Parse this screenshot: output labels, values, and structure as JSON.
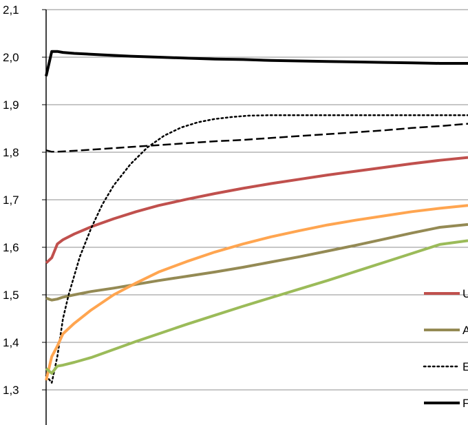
{
  "chart_data": {
    "type": "line",
    "ylim": [
      1.3,
      2.1
    ],
    "yticks": [
      "1,3",
      "1,4",
      "1,5",
      "1,6",
      "1,7",
      "1,8",
      "1,9",
      "2,0",
      "2,1"
    ],
    "ytick_values": [
      1.3,
      1.4,
      1.5,
      1.6,
      1.7,
      1.8,
      1.9,
      2.0,
      2.1
    ],
    "grid": true,
    "legend_position": "right (partially cut off)",
    "series": [
      {
        "name": "U",
        "color": "#c0504d",
        "dash": "solid",
        "x": [
          0,
          1,
          2,
          3,
          5,
          8,
          12,
          16,
          20,
          25,
          30,
          35,
          40,
          45,
          50,
          55,
          60,
          65,
          70,
          75
        ],
        "values": [
          1.567,
          1.578,
          1.607,
          1.616,
          1.628,
          1.643,
          1.66,
          1.675,
          1.688,
          1.701,
          1.713,
          1.724,
          1.734,
          1.743,
          1.752,
          1.76,
          1.768,
          1.776,
          1.783,
          1.789
        ]
      },
      {
        "name": "A",
        "color": "#948a54",
        "dash": "solid",
        "x": [
          0,
          1,
          2,
          3,
          5,
          8,
          12,
          16,
          20,
          25,
          30,
          35,
          40,
          45,
          50,
          55,
          60,
          65,
          70,
          75
        ],
        "values": [
          1.493,
          1.489,
          1.491,
          1.495,
          1.5,
          1.507,
          1.514,
          1.522,
          1.53,
          1.539,
          1.548,
          1.558,
          1.569,
          1.58,
          1.592,
          1.604,
          1.617,
          1.63,
          1.642,
          1.648
        ]
      },
      {
        "name": "E",
        "color": "#000000",
        "dash": "dotted",
        "x": [
          0,
          1,
          2,
          3,
          4,
          6,
          8,
          10,
          12,
          15,
          18,
          21,
          24,
          27,
          30,
          33,
          36,
          40,
          45,
          50,
          60,
          70,
          75
        ],
        "values": [
          1.33,
          1.315,
          1.37,
          1.45,
          1.5,
          1.58,
          1.64,
          1.69,
          1.73,
          1.775,
          1.81,
          1.835,
          1.852,
          1.863,
          1.87,
          1.874,
          1.877,
          1.878,
          1.878,
          1.878,
          1.878,
          1.878,
          1.878
        ]
      },
      {
        "name": "F",
        "color": "#000000",
        "dash": "solid",
        "x": [
          0,
          1,
          2,
          3,
          5,
          10,
          15,
          20,
          25,
          30,
          35,
          40,
          45,
          50,
          55,
          60,
          65,
          70,
          75
        ],
        "values": [
          1.96,
          2.012,
          2.012,
          2.01,
          2.008,
          2.005,
          2.002,
          2.0,
          1.998,
          1.996,
          1.995,
          1.993,
          1.992,
          1.991,
          1.99,
          1.989,
          1.988,
          1.987,
          1.987
        ]
      },
      {
        "name": "",
        "color": "#000000",
        "dash": "dashed",
        "x": [
          0,
          1,
          2,
          5,
          10,
          15,
          20,
          25,
          30,
          35,
          40,
          45,
          50,
          55,
          60,
          65,
          70,
          75
        ],
        "values": [
          1.804,
          1.801,
          1.801,
          1.803,
          1.807,
          1.811,
          1.815,
          1.819,
          1.823,
          1.826,
          1.83,
          1.834,
          1.838,
          1.842,
          1.846,
          1.851,
          1.855,
          1.86
        ]
      },
      {
        "name": "",
        "color": "#ffa550",
        "dash": "solid",
        "x": [
          0,
          1,
          2,
          3,
          5,
          8,
          12,
          16,
          20,
          25,
          30,
          35,
          40,
          45,
          50,
          55,
          60,
          65,
          70,
          75
        ],
        "values": [
          1.32,
          1.37,
          1.392,
          1.418,
          1.44,
          1.468,
          1.5,
          1.525,
          1.548,
          1.57,
          1.59,
          1.607,
          1.622,
          1.635,
          1.647,
          1.657,
          1.666,
          1.675,
          1.682,
          1.688
        ]
      },
      {
        "name": "",
        "color": "#9bbb59",
        "dash": "solid",
        "x": [
          0,
          1,
          2,
          3,
          5,
          8,
          12,
          16,
          20,
          25,
          30,
          35,
          40,
          45,
          50,
          55,
          60,
          65,
          70,
          75
        ],
        "values": [
          1.345,
          1.335,
          1.35,
          1.352,
          1.358,
          1.368,
          1.385,
          1.402,
          1.418,
          1.438,
          1.457,
          1.476,
          1.494,
          1.512,
          1.53,
          1.549,
          1.568,
          1.587,
          1.606,
          1.614
        ]
      }
    ],
    "legend": [
      {
        "label": "U",
        "color": "#c0504d",
        "dash": "solid"
      },
      {
        "label": "A",
        "color": "#948a54",
        "dash": "solid"
      },
      {
        "label": "E",
        "color": "#000000",
        "dash": "dotted"
      },
      {
        "label": "F",
        "color": "#000000",
        "dash": "solid"
      }
    ]
  }
}
